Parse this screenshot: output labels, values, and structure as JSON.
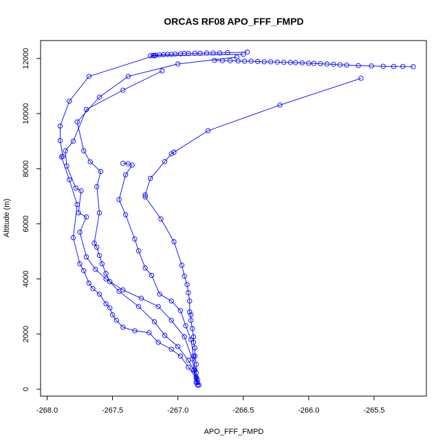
{
  "chart_data": {
    "type": "line",
    "title": "ORCAS RF08 APO_FFF_FMPD",
    "xlabel": "APO_FFF_FMPD",
    "ylabel": "Altitude (m)",
    "xlim": [
      -268.05,
      -265.1
    ],
    "ylim": [
      -250,
      12650
    ],
    "x_ticks": [
      -268.0,
      -267.5,
      -267.0,
      -266.5,
      -266.0,
      -265.5
    ],
    "x_tick_labels": [
      "-268.0",
      "-267.5",
      "-267.0",
      "-266.5",
      "-266.0",
      "-265.5"
    ],
    "y_ticks": [
      0,
      2000,
      4000,
      6000,
      8000,
      10000,
      12000
    ],
    "y_tick_labels": [
      "0",
      "2000",
      "4000",
      "6000",
      "8000",
      "10000",
      "12000"
    ],
    "grid": false,
    "line_color": "#0000ff",
    "marker": "open-circle",
    "series": [
      {
        "x": [
          -266.47,
          -266.62,
          -266.68,
          -266.73,
          -266.78,
          -266.83,
          -266.87,
          -266.92,
          -266.95,
          -266.98,
          -267.02,
          -267.05,
          -267.08,
          -267.11,
          -267.14,
          -267.17,
          -267.19,
          -267.21
        ],
        "y": [
          12230,
          12210,
          12200,
          12200,
          12200,
          12190,
          12190,
          12180,
          12180,
          12170,
          12160,
          12150,
          12150,
          12140,
          12130,
          12120,
          12110,
          12100
        ]
      },
      {
        "x": [
          -265.2,
          -265.28,
          -265.35,
          -265.43,
          -265.52,
          -265.62,
          -265.71,
          -265.76,
          -265.81,
          -265.86,
          -265.91,
          -265.96,
          -266.0,
          -266.05,
          -266.1,
          -266.14,
          -266.19,
          -266.24,
          -266.29,
          -266.34,
          -266.39,
          -266.44,
          -266.49,
          -266.54,
          -266.6,
          -266.66,
          -266.72
        ],
        "y": [
          11700,
          11710,
          11710,
          11720,
          11730,
          11740,
          11760,
          11770,
          11790,
          11800,
          11810,
          11820,
          11830,
          11840,
          11850,
          11860,
          11860,
          11870,
          11880,
          11880,
          11890,
          11900,
          11900,
          11910,
          11920,
          11920,
          11930
        ]
      },
      {
        "x": [
          -266.5,
          -267.18,
          -267.68,
          -267.83,
          -267.9,
          -267.9,
          -267.88,
          -267.89,
          -267.83,
          -267.77,
          -267.8,
          -267.75,
          -267.72,
          -267.68,
          -267.65,
          -267.6,
          -267.55,
          -267.52,
          -267.5,
          -267.47,
          -267.42,
          -267.33,
          -267.22,
          -267.15,
          -267.05,
          -266.98,
          -266.92,
          -266.86,
          -266.85
        ],
        "y": [
          12150,
          12100,
          11350,
          10450,
          9550,
          9020,
          8450,
          8430,
          7600,
          6700,
          5500,
          4550,
          4300,
          3850,
          3650,
          3450,
          3100,
          2950,
          2700,
          2500,
          2250,
          2120,
          2050,
          1700,
          1450,
          1200,
          800,
          400,
          150
        ]
      },
      {
        "x": [
          -266.55,
          -267.0,
          -267.38,
          -267.6,
          -267.77,
          -267.72,
          -267.67,
          -267.59,
          -267.62,
          -267.6,
          -267.64,
          -267.62,
          -267.6,
          -267.58,
          -267.55,
          -267.52,
          -267.45,
          -267.3,
          -267.18,
          -267.1,
          -267.0,
          -266.92,
          -266.88,
          -266.86,
          -266.85,
          -266.84
        ],
        "y": [
          12050,
          11800,
          11350,
          10600,
          9700,
          8650,
          8250,
          7900,
          7350,
          6400,
          5300,
          5150,
          4850,
          4550,
          4200,
          3900,
          3550,
          3000,
          2450,
          1950,
          1550,
          1050,
          700,
          450,
          250,
          150
        ]
      },
      {
        "x": [
          -265.6,
          -266.22,
          -266.77,
          -267.03,
          -267.05,
          -267.1,
          -267.21,
          -267.25,
          -267.25,
          -267.13,
          -267.03,
          -266.97,
          -266.95,
          -266.93,
          -266.92,
          -266.91,
          -266.91,
          -266.9,
          -266.9,
          -266.89,
          -266.88,
          -266.88,
          -266.87,
          -266.87,
          -266.86,
          -266.86,
          -266.85,
          -266.84
        ],
        "y": [
          11280,
          10310,
          9380,
          8600,
          8540,
          8260,
          7650,
          7050,
          6980,
          6180,
          5350,
          4500,
          4100,
          3800,
          3500,
          3200,
          2800,
          2700,
          2500,
          2200,
          1900,
          1700,
          1500,
          1200,
          900,
          600,
          350,
          150
        ]
      },
      {
        "x": [
          -267.12,
          -267.42,
          -267.7,
          -267.8,
          -267.86,
          -267.85,
          -267.78,
          -267.74,
          -267.76,
          -267.7,
          -267.75,
          -267.7,
          -267.63,
          -267.55,
          -267.42,
          -267.28,
          -267.15,
          -267.05,
          -266.95,
          -266.89,
          -266.86
        ],
        "y": [
          11550,
          10850,
          10150,
          9000,
          8650,
          8100,
          7300,
          7200,
          6400,
          6250,
          5700,
          4800,
          4350,
          4000,
          3600,
          3300,
          3000,
          2500,
          1900,
          1100,
          250
        ]
      },
      {
        "x": [
          -267.42,
          -267.38,
          -267.35,
          -267.4,
          -267.45,
          -267.4,
          -267.33,
          -267.3,
          -267.25,
          -267.2,
          -267.14,
          -267.05,
          -266.98,
          -266.94,
          -266.9,
          -266.88,
          -266.87,
          -266.86
        ],
        "y": [
          8200,
          8180,
          8130,
          7780,
          6880,
          6330,
          5450,
          5020,
          4400,
          4130,
          3450,
          3200,
          2850,
          2300,
          1800,
          1200,
          700,
          250
        ]
      }
    ]
  }
}
